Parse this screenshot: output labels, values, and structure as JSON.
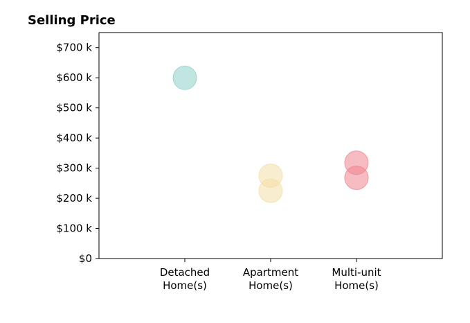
{
  "chart_data": {
    "type": "scatter",
    "title": "Selling Price",
    "xlabel": "",
    "ylabel": "",
    "categories": [
      [
        "Detached",
        "Home(s)"
      ],
      [
        "Apartment",
        "Home(s)"
      ],
      [
        "Multi-unit",
        "Home(s)"
      ]
    ],
    "y_ticks": [
      0,
      100000,
      200000,
      300000,
      400000,
      500000,
      600000,
      700000
    ],
    "y_tick_labels": [
      "$0",
      "$100 k",
      "$200 k",
      "$300 k",
      "$400 k",
      "$500 k",
      "$600 k",
      "$700 k"
    ],
    "ylim": [
      0,
      750000
    ],
    "xlim": [
      0,
      4
    ],
    "grid": false,
    "series": [
      {
        "category_index": 0,
        "color": "#8ecfc9",
        "values": [
          600000
        ]
      },
      {
        "category_index": 1,
        "color": "#f4dfa8",
        "values": [
          275000,
          225000
        ]
      },
      {
        "category_index": 2,
        "color": "#f0848f",
        "values": [
          318000,
          268000
        ]
      }
    ]
  }
}
